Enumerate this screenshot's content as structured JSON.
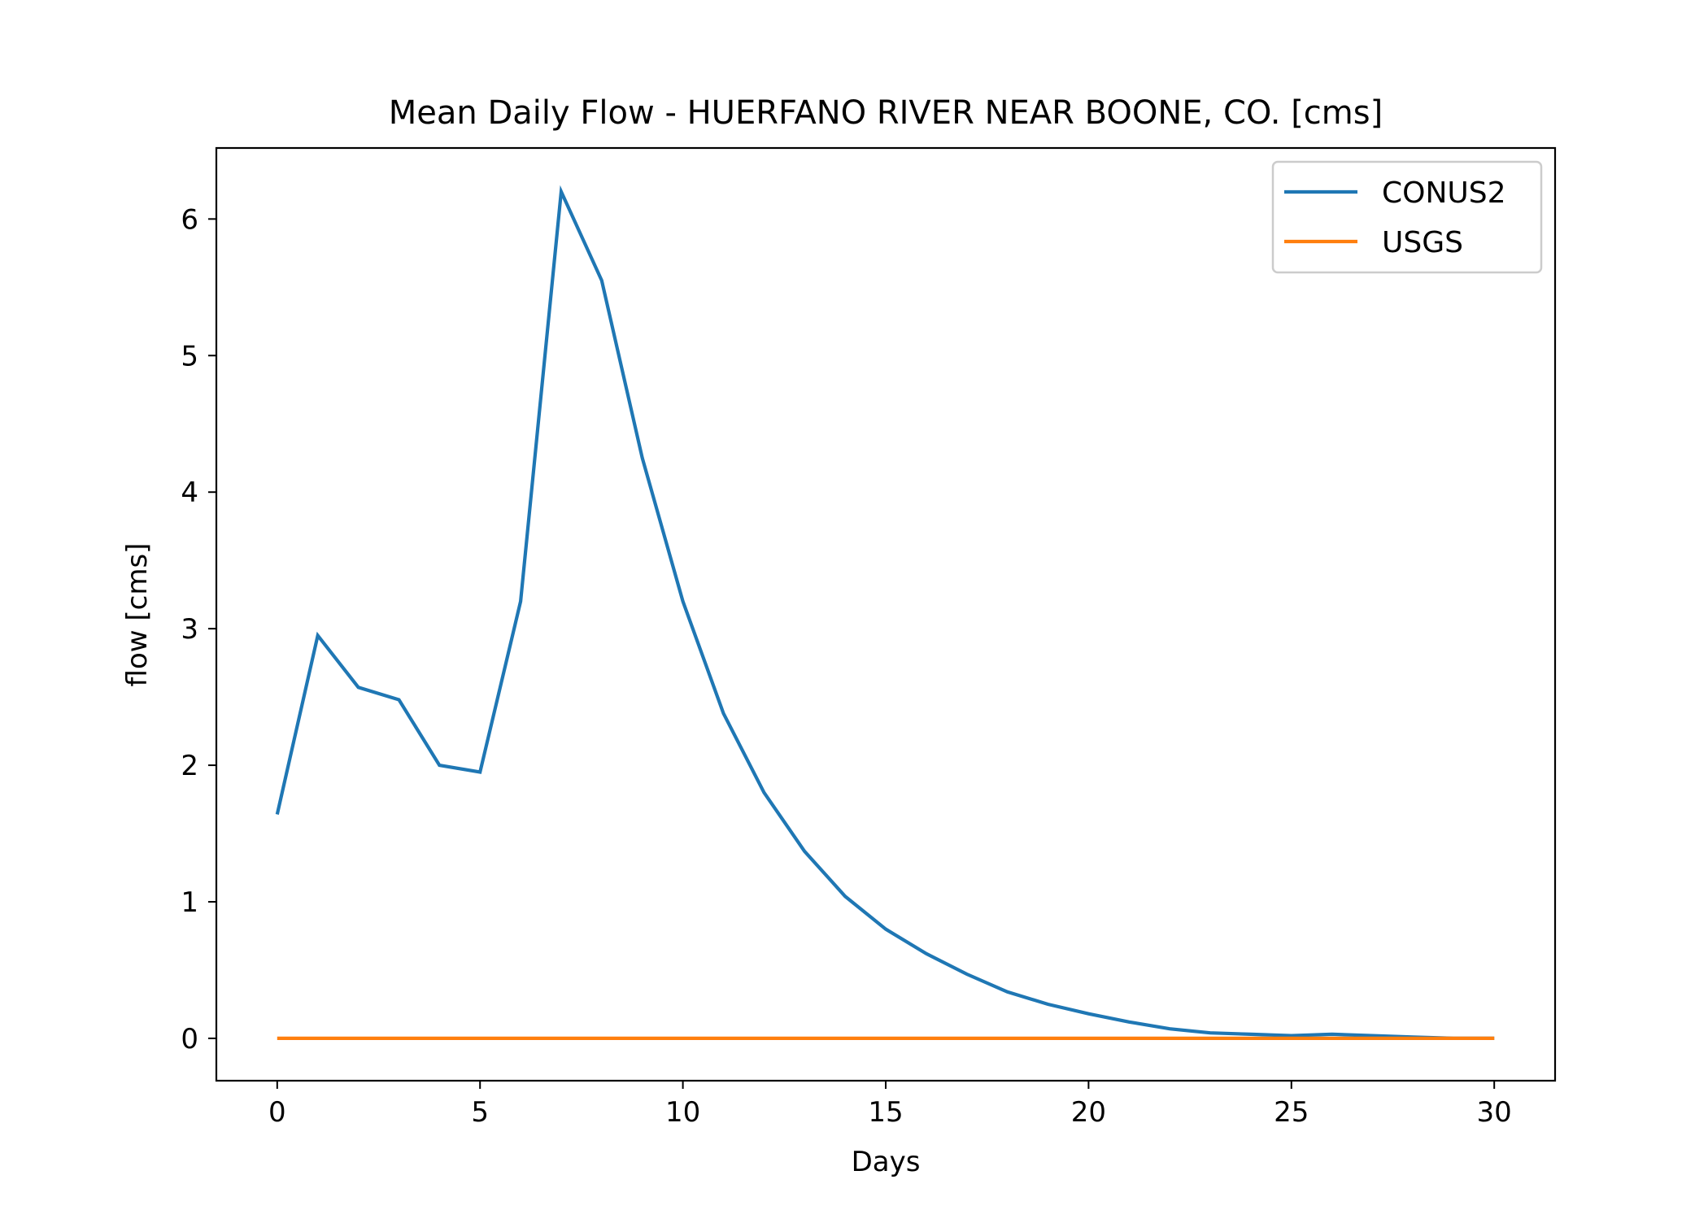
{
  "chart_data": {
    "type": "line",
    "title": "Mean Daily Flow - HUERFANO RIVER NEAR BOONE, CO. [cms]",
    "xlabel": "Days",
    "ylabel": "flow [cms]",
    "xlim": [
      -1.5,
      31.5
    ],
    "ylim": [
      -0.31,
      6.52
    ],
    "xticks": [
      0,
      5,
      10,
      15,
      20,
      25,
      30
    ],
    "yticks": [
      0,
      1,
      2,
      3,
      4,
      5,
      6
    ],
    "grid": false,
    "legend_position": "top-right",
    "x": [
      0,
      1,
      2,
      3,
      4,
      5,
      6,
      7,
      8,
      9,
      10,
      11,
      12,
      13,
      14,
      15,
      16,
      17,
      18,
      19,
      20,
      21,
      22,
      23,
      24,
      25,
      26,
      27,
      28,
      29,
      30
    ],
    "series": [
      {
        "name": "CONUS2",
        "color": "#1f77b4",
        "values": [
          1.64,
          2.95,
          2.57,
          2.48,
          2.0,
          1.95,
          3.2,
          6.2,
          5.55,
          4.25,
          3.2,
          2.38,
          1.8,
          1.37,
          1.04,
          0.8,
          0.62,
          0.47,
          0.34,
          0.25,
          0.18,
          0.12,
          0.07,
          0.04,
          0.03,
          0.02,
          0.03,
          0.02,
          0.01,
          0.0,
          0.0
        ]
      },
      {
        "name": "USGS",
        "color": "#ff7f0e",
        "values": [
          0,
          0,
          0,
          0,
          0,
          0,
          0,
          0,
          0,
          0,
          0,
          0,
          0,
          0,
          0,
          0,
          0,
          0,
          0,
          0,
          0,
          0,
          0,
          0,
          0,
          0,
          0,
          0,
          0,
          0,
          0
        ]
      }
    ]
  }
}
